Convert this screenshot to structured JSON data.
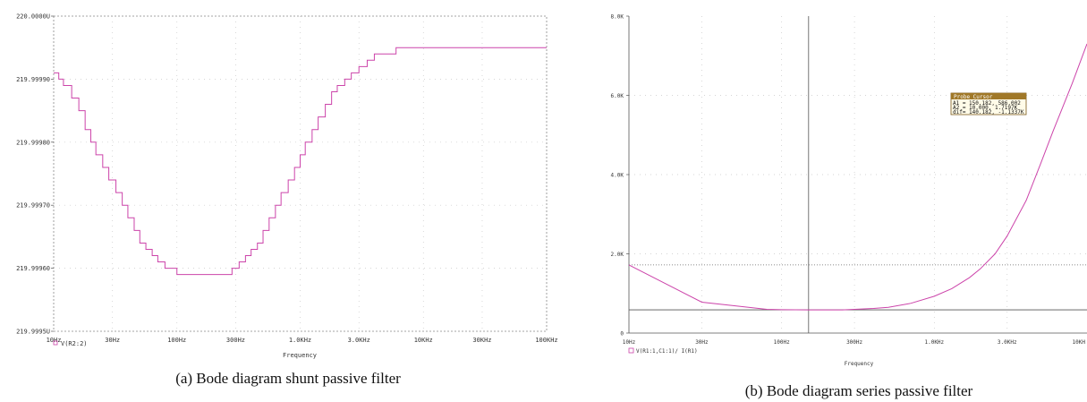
{
  "chart_data": [
    {
      "type": "line",
      "caption": "(a) Bode diagram shunt passive  filter",
      "xlabel": "Frequency",
      "xscale": "log",
      "xlim": [
        10,
        100000
      ],
      "ylim": [
        219.9995,
        220.0
      ],
      "x_ticks": [
        {
          "value": 10,
          "label": "10Hz"
        },
        {
          "value": 30,
          "label": "30Hz"
        },
        {
          "value": 100,
          "label": "100Hz"
        },
        {
          "value": 300,
          "label": "300Hz"
        },
        {
          "value": 1000,
          "label": "1.0KHz"
        },
        {
          "value": 3000,
          "label": "3.0KHz"
        },
        {
          "value": 10000,
          "label": "10KHz"
        },
        {
          "value": 30000,
          "label": "30KHz"
        },
        {
          "value": 100000,
          "label": "100KHz"
        }
      ],
      "y_ticks": [
        {
          "value": 219.9995,
          "label": "219.9995U"
        },
        {
          "value": 219.9996,
          "label": "219.99960"
        },
        {
          "value": 219.9997,
          "label": "219.99970"
        },
        {
          "value": 219.9998,
          "label": "219.99980"
        },
        {
          "value": 219.9999,
          "label": "219.99990"
        },
        {
          "value": 220.0,
          "label": "220.0000U"
        }
      ],
      "grid": true,
      "color": "#cc44aa",
      "series": [
        {
          "name": "V(R2:2)",
          "x": [
            10,
            11,
            12,
            14,
            16,
            18,
            20,
            22,
            25,
            28,
            32,
            36,
            40,
            45,
            50,
            56,
            63,
            70,
            80,
            90,
            100,
            150,
            200,
            250,
            280,
            320,
            360,
            400,
            450,
            500,
            560,
            630,
            700,
            800,
            900,
            1000,
            1100,
            1250,
            1400,
            1600,
            1800,
            2000,
            2300,
            2600,
            3000,
            3500,
            4000,
            5000,
            6000,
            10000,
            30000,
            100000
          ],
          "y": [
            219.99991,
            219.9999,
            219.99989,
            219.99987,
            219.99985,
            219.99982,
            219.9998,
            219.99978,
            219.99976,
            219.99974,
            219.99972,
            219.9997,
            219.99968,
            219.99966,
            219.99964,
            219.99963,
            219.99962,
            219.99961,
            219.9996,
            219.9996,
            219.99959,
            219.99959,
            219.99959,
            219.99959,
            219.9996,
            219.99961,
            219.99962,
            219.99963,
            219.99964,
            219.99966,
            219.99968,
            219.9997,
            219.99972,
            219.99974,
            219.99976,
            219.99978,
            219.9998,
            219.99982,
            219.99984,
            219.99986,
            219.99988,
            219.99989,
            219.9999,
            219.99991,
            219.99992,
            219.99993,
            219.99994,
            219.99994,
            219.99995,
            219.99995,
            219.99995,
            219.99995
          ]
        }
      ]
    },
    {
      "type": "line",
      "caption": "(b) Bode diagram series passive  filter",
      "xlabel": "Frequency",
      "xscale": "log",
      "xlim": [
        10,
        10000
      ],
      "ylim": [
        0,
        8
      ],
      "x_ticks": [
        {
          "value": 10,
          "label": "10Hz"
        },
        {
          "value": 30,
          "label": "30Hz"
        },
        {
          "value": 100,
          "label": "100Hz"
        },
        {
          "value": 300,
          "label": "300Hz"
        },
        {
          "value": 1000,
          "label": "1.0KHz"
        },
        {
          "value": 3000,
          "label": "3.0KHz"
        },
        {
          "value": 10000,
          "label": "10KH"
        }
      ],
      "y_ticks": [
        {
          "value": 0,
          "label": "0"
        },
        {
          "value": 2,
          "label": "2.0K"
        },
        {
          "value": 4,
          "label": "4.0K"
        },
        {
          "value": 6,
          "label": "6.0K"
        },
        {
          "value": 8,
          "label": "8.0K"
        }
      ],
      "grid": true,
      "color": "#cc44aa",
      "cursors": {
        "x": 150.182,
        "y_levels": [
          1.7197,
          0.586
        ]
      },
      "series": [
        {
          "name": "V(R1:1,C1:1)/ I(R1)",
          "x": [
            10,
            30,
            80,
            100,
            150,
            250,
            300,
            400,
            500,
            700,
            1000,
            1300,
            1700,
            2000,
            2500,
            3000,
            4000,
            5000,
            6000,
            8000,
            10000
          ],
          "y": [
            1.72,
            0.78,
            0.6,
            0.59,
            0.586,
            0.586,
            0.6,
            0.62,
            0.65,
            0.75,
            0.93,
            1.12,
            1.4,
            1.62,
            2.0,
            2.45,
            3.35,
            4.3,
            5.1,
            6.3,
            7.3
          ]
        }
      ],
      "probe_cursor": {
        "title": "Probe Cursor",
        "rows": [
          "A1 =  150.182,    586.002",
          "A2 =   10.000,    1.7197K",
          "dif=  140.182,   -1.1337K"
        ]
      }
    }
  ]
}
